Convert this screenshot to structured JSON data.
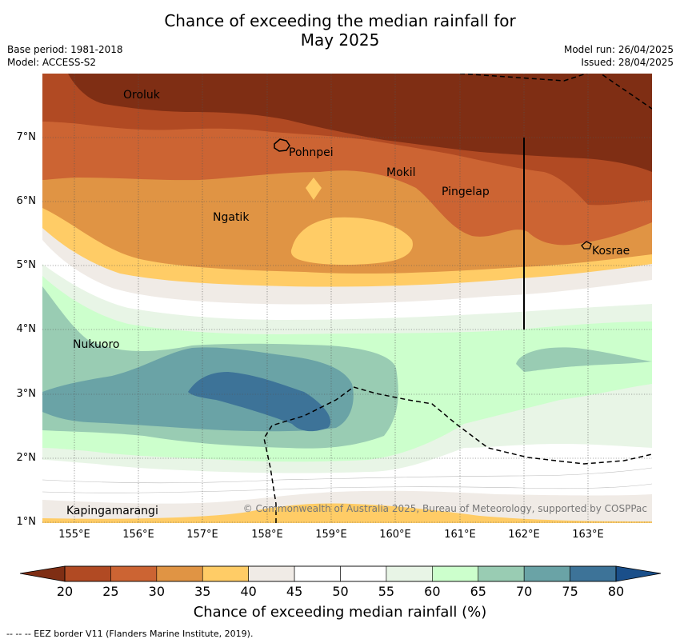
{
  "title_line1": "Chance of exceeding the median rainfall for",
  "title_line2": "May 2025",
  "base_period": "Base period: 1981-2018",
  "model": "Model: ACCESS-S2",
  "model_run": "Model run: 26/04/2025",
  "issued": "Issued: 28/04/2025",
  "y_ticks": [
    "7°N",
    "6°N",
    "5°N",
    "4°N",
    "3°N",
    "2°N",
    "1°N"
  ],
  "x_ticks": [
    "155°E",
    "156°E",
    "157°E",
    "158°E",
    "159°E",
    "160°E",
    "161°E",
    "162°E",
    "163°E"
  ],
  "places": {
    "oroluk": "Oroluk",
    "pohnpei": "Pohnpei",
    "mokil": "Mokil",
    "pingelap": "Pingelap",
    "ngatik": "Ngatik",
    "kosrae": "Kosrae",
    "nukuoro": "Nukuoro",
    "kapingamarangi": "Kapingamarangi"
  },
  "copyright": "© Commonwealth of Australia 2025, Bureau of Meteorology, supported by COSPPac",
  "colorbar": {
    "ticks": [
      "20",
      "25",
      "30",
      "35",
      "40",
      "45",
      "50",
      "55",
      "60",
      "65",
      "70",
      "75",
      "80"
    ],
    "colors": {
      "below_20": "#7f2e14",
      "20_25": "#b14a23",
      "25_30": "#cc6433",
      "30_35": "#e09444",
      "35_40": "#ffcc66",
      "40_45": "#f0ebe6",
      "45_50": "#ffffff",
      "50_55": "#ffffff",
      "55_60": "#e8f5e6",
      "60_65": "#ccffcc",
      "65_70": "#99ccb3",
      "70_75": "#6aa3a6",
      "75_80": "#3d7398",
      "above_80": "#1a4f8a"
    },
    "label": "Chance of exceeding median rainfall (%)"
  },
  "eez_note": "--  --  -- EEZ border V11 (Flanders Marine Institute, 2019)."
}
